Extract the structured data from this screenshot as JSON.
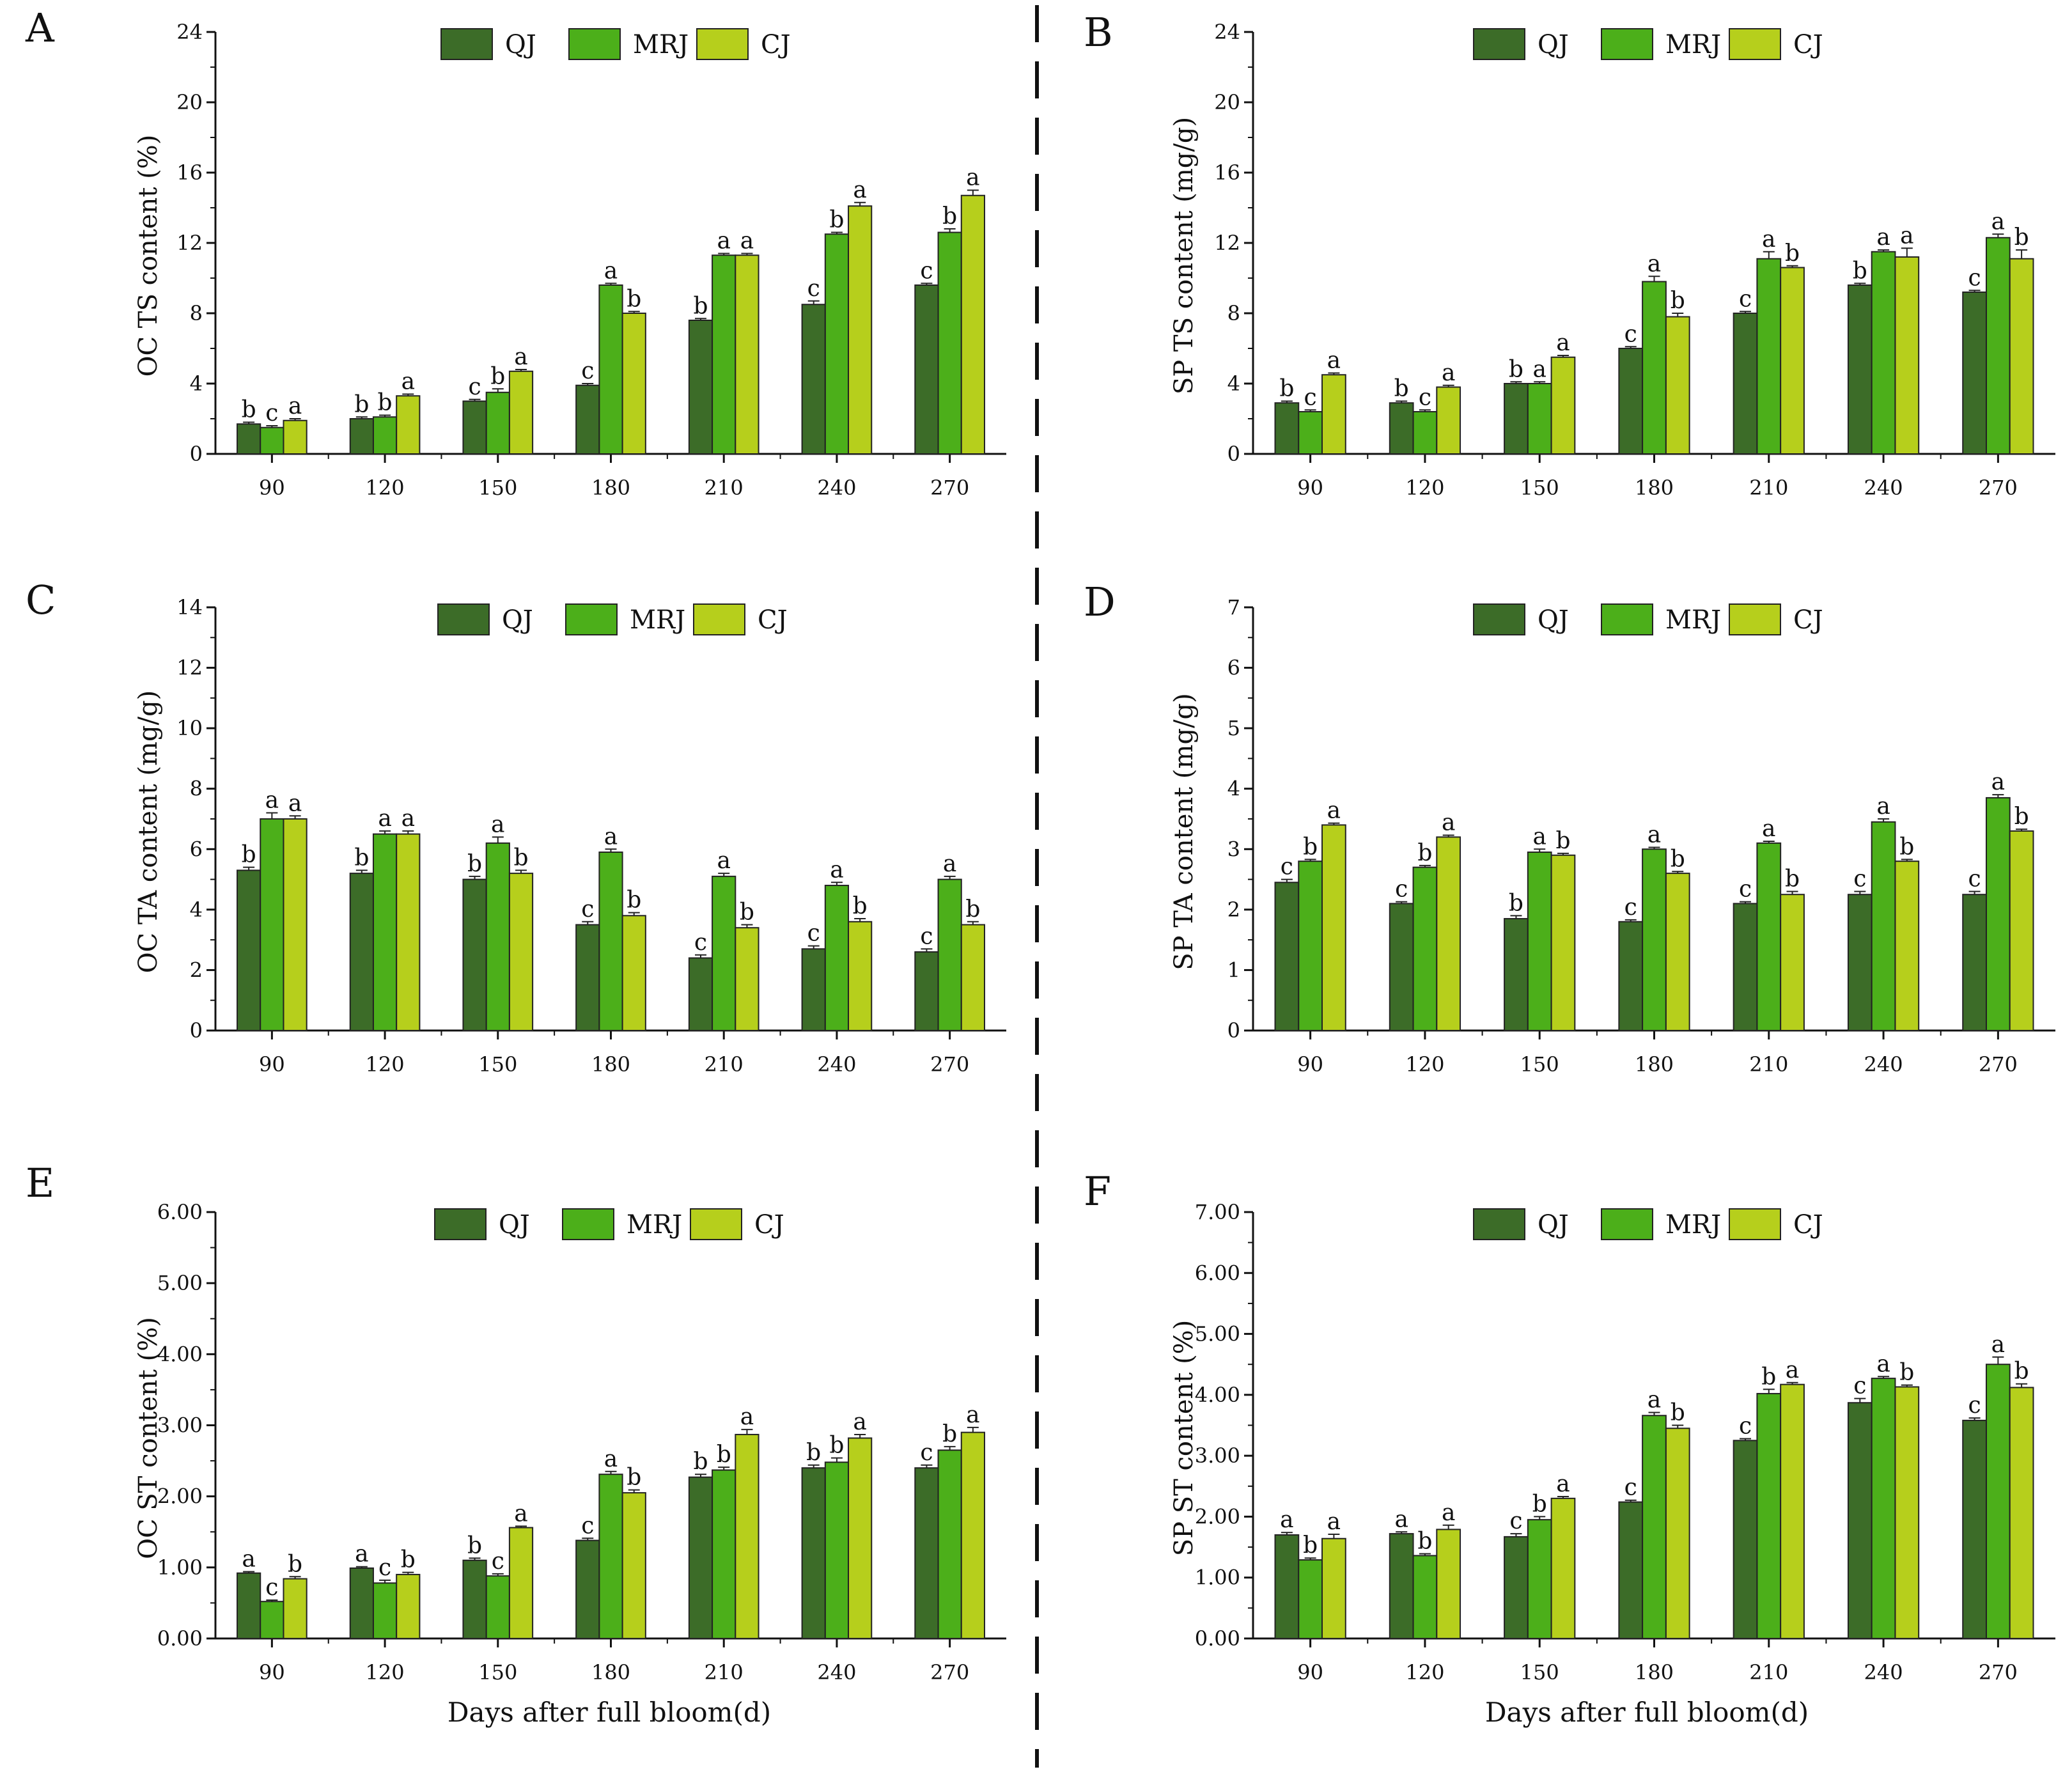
{
  "colors": {
    "QJ": "#3c6c28",
    "MRJ": "#4caf1a",
    "CJ": "#b6cf1c",
    "axis": "#111111",
    "divider": "#111111"
  },
  "legend": [
    "QJ",
    "MRJ",
    "CJ"
  ],
  "x_axis_title": "Days after full bloom(d)",
  "chart_data": [
    {
      "panel": "A",
      "type": "bar",
      "ylabel": "OC TS content (%)",
      "categories": [
        "90",
        "120",
        "150",
        "180",
        "210",
        "240",
        "270"
      ],
      "yticks": [
        "0",
        "4",
        "8",
        "12",
        "16",
        "20",
        "24"
      ],
      "ylim": [
        0,
        24
      ],
      "series": [
        {
          "name": "QJ",
          "values": [
            1.7,
            2.0,
            3.0,
            3.9,
            7.6,
            8.5,
            9.6
          ],
          "errors": [
            0.1,
            0.1,
            0.1,
            0.1,
            0.1,
            0.2,
            0.1
          ],
          "letters": [
            "b",
            "b",
            "c",
            "c",
            "b",
            "c",
            "c"
          ]
        },
        {
          "name": "MRJ",
          "values": [
            1.5,
            2.1,
            3.5,
            9.6,
            11.3,
            12.5,
            12.6
          ],
          "errors": [
            0.1,
            0.1,
            0.2,
            0.1,
            0.1,
            0.1,
            0.2
          ],
          "letters": [
            "c",
            "b",
            "b",
            "a",
            "a",
            "b",
            "b"
          ]
        },
        {
          "name": "CJ",
          "values": [
            1.9,
            3.3,
            4.7,
            8.0,
            11.3,
            14.1,
            14.7
          ],
          "errors": [
            0.1,
            0.1,
            0.1,
            0.1,
            0.1,
            0.2,
            0.3
          ],
          "letters": [
            "a",
            "a",
            "a",
            "b",
            "a",
            "a",
            "a"
          ]
        }
      ]
    },
    {
      "panel": "B",
      "type": "bar",
      "ylabel": "SP TS content (mg/g)",
      "categories": [
        "90",
        "120",
        "150",
        "180",
        "210",
        "240",
        "270"
      ],
      "yticks": [
        "0",
        "4",
        "8",
        "12",
        "16",
        "20",
        "24"
      ],
      "ylim": [
        0,
        24
      ],
      "series": [
        {
          "name": "QJ",
          "values": [
            2.9,
            2.9,
            4.0,
            6.0,
            8.0,
            9.6,
            9.2
          ],
          "errors": [
            0.1,
            0.1,
            0.1,
            0.1,
            0.1,
            0.1,
            0.1
          ],
          "letters": [
            "b",
            "b",
            "b",
            "c",
            "c",
            "b",
            "c"
          ]
        },
        {
          "name": "MRJ",
          "values": [
            2.4,
            2.4,
            4.0,
            9.8,
            11.1,
            11.5,
            12.3
          ],
          "errors": [
            0.1,
            0.1,
            0.1,
            0.3,
            0.4,
            0.1,
            0.2
          ],
          "letters": [
            "c",
            "c",
            "a",
            "a",
            "a",
            "a",
            "a"
          ]
        },
        {
          "name": "CJ",
          "values": [
            4.5,
            3.8,
            5.5,
            7.8,
            10.6,
            11.2,
            11.1
          ],
          "errors": [
            0.1,
            0.1,
            0.1,
            0.2,
            0.1,
            0.5,
            0.5
          ],
          "letters": [
            "a",
            "a",
            "a",
            "b",
            "b",
            "a",
            "b"
          ]
        }
      ]
    },
    {
      "panel": "C",
      "type": "bar",
      "ylabel": "OC TA content (mg/g)",
      "categories": [
        "90",
        "120",
        "150",
        "180",
        "210",
        "240",
        "270"
      ],
      "yticks": [
        "0",
        "2",
        "4",
        "6",
        "8",
        "10",
        "12",
        "14"
      ],
      "ylim": [
        0,
        14
      ],
      "series": [
        {
          "name": "QJ",
          "values": [
            5.3,
            5.2,
            5.0,
            3.5,
            2.4,
            2.7,
            2.6
          ],
          "errors": [
            0.1,
            0.1,
            0.1,
            0.1,
            0.1,
            0.1,
            0.1
          ],
          "letters": [
            "b",
            "b",
            "b",
            "c",
            "c",
            "c",
            "c"
          ]
        },
        {
          "name": "MRJ",
          "values": [
            7.0,
            6.5,
            6.2,
            5.9,
            5.1,
            4.8,
            5.0
          ],
          "errors": [
            0.2,
            0.1,
            0.2,
            0.1,
            0.1,
            0.1,
            0.1
          ],
          "letters": [
            "a",
            "a",
            "a",
            "a",
            "a",
            "a",
            "a"
          ]
        },
        {
          "name": "CJ",
          "values": [
            7.0,
            6.5,
            5.2,
            3.8,
            3.4,
            3.6,
            3.5
          ],
          "errors": [
            0.1,
            0.1,
            0.1,
            0.1,
            0.1,
            0.1,
            0.1
          ],
          "letters": [
            "a",
            "a",
            "b",
            "b",
            "b",
            "b",
            "b"
          ]
        }
      ]
    },
    {
      "panel": "D",
      "type": "bar",
      "ylabel": "SP TA content (mg/g)",
      "categories": [
        "90",
        "120",
        "150",
        "180",
        "210",
        "240",
        "270"
      ],
      "yticks": [
        "0",
        "1",
        "2",
        "3",
        "4",
        "5",
        "6",
        "7"
      ],
      "ylim": [
        0,
        7
      ],
      "series": [
        {
          "name": "QJ",
          "values": [
            2.45,
            2.1,
            1.85,
            1.8,
            2.1,
            2.25,
            2.25
          ],
          "errors": [
            0.05,
            0.03,
            0.05,
            0.03,
            0.03,
            0.05,
            0.05
          ],
          "letters": [
            "c",
            "c",
            "b",
            "c",
            "c",
            "c",
            "c"
          ]
        },
        {
          "name": "MRJ",
          "values": [
            2.8,
            2.7,
            2.95,
            3.0,
            3.1,
            3.45,
            3.85
          ],
          "errors": [
            0.03,
            0.03,
            0.05,
            0.03,
            0.03,
            0.05,
            0.05
          ],
          "letters": [
            "b",
            "b",
            "a",
            "a",
            "a",
            "a",
            "a"
          ]
        },
        {
          "name": "CJ",
          "values": [
            3.4,
            3.2,
            2.9,
            2.6,
            2.25,
            2.8,
            3.3
          ],
          "errors": [
            0.03,
            0.03,
            0.03,
            0.03,
            0.05,
            0.03,
            0.03
          ],
          "letters": [
            "a",
            "a",
            "b",
            "b",
            "b",
            "b",
            "b"
          ]
        }
      ]
    },
    {
      "panel": "E",
      "type": "bar",
      "ylabel": "OC ST content (%)",
      "categories": [
        "90",
        "120",
        "150",
        "180",
        "210",
        "240",
        "270"
      ],
      "yticks": [
        "0.00",
        "1.00",
        "2.00",
        "3.00",
        "4.00",
        "5.00",
        "6.00"
      ],
      "ylim": [
        0,
        6
      ],
      "series": [
        {
          "name": "QJ",
          "values": [
            0.92,
            0.99,
            1.1,
            1.38,
            2.27,
            2.4,
            2.4
          ],
          "errors": [
            0.02,
            0.02,
            0.03,
            0.03,
            0.04,
            0.04,
            0.04
          ],
          "letters": [
            "a",
            "a",
            "b",
            "c",
            "b",
            "b",
            "c"
          ]
        },
        {
          "name": "MRJ",
          "values": [
            0.52,
            0.78,
            0.88,
            2.31,
            2.37,
            2.48,
            2.65
          ],
          "errors": [
            0.02,
            0.04,
            0.03,
            0.04,
            0.04,
            0.06,
            0.05
          ],
          "letters": [
            "c",
            "c",
            "c",
            "a",
            "b",
            "b",
            "b"
          ]
        },
        {
          "name": "CJ",
          "values": [
            0.84,
            0.9,
            1.56,
            2.05,
            2.87,
            2.82,
            2.9
          ],
          "errors": [
            0.03,
            0.03,
            0.02,
            0.04,
            0.07,
            0.05,
            0.07
          ],
          "letters": [
            "b",
            "b",
            "a",
            "b",
            "a",
            "a",
            "a"
          ]
        }
      ]
    },
    {
      "panel": "F",
      "type": "bar",
      "ylabel": "SP ST content (%)",
      "categories": [
        "90",
        "120",
        "150",
        "180",
        "210",
        "240",
        "270"
      ],
      "yticks": [
        "0.00",
        "1.00",
        "2.00",
        "3.00",
        "4.00",
        "5.00",
        "6.00",
        "7.00"
      ],
      "ylim": [
        0,
        7
      ],
      "series": [
        {
          "name": "QJ",
          "values": [
            1.7,
            1.72,
            1.67,
            2.24,
            3.25,
            3.87,
            3.58
          ],
          "errors": [
            0.04,
            0.03,
            0.05,
            0.03,
            0.03,
            0.07,
            0.04
          ],
          "letters": [
            "a",
            "a",
            "c",
            "c",
            "c",
            "c",
            "c"
          ]
        },
        {
          "name": "MRJ",
          "values": [
            1.29,
            1.36,
            1.95,
            3.66,
            4.02,
            4.27,
            4.5
          ],
          "errors": [
            0.03,
            0.03,
            0.05,
            0.05,
            0.07,
            0.03,
            0.12
          ],
          "letters": [
            "b",
            "b",
            "b",
            "a",
            "b",
            "a",
            "a"
          ]
        },
        {
          "name": "CJ",
          "values": [
            1.64,
            1.79,
            2.3,
            3.45,
            4.17,
            4.13,
            4.12
          ],
          "errors": [
            0.07,
            0.07,
            0.03,
            0.05,
            0.03,
            0.03,
            0.06
          ],
          "letters": [
            "a",
            "a",
            "a",
            "b",
            "a",
            "b",
            "b"
          ]
        }
      ]
    }
  ]
}
